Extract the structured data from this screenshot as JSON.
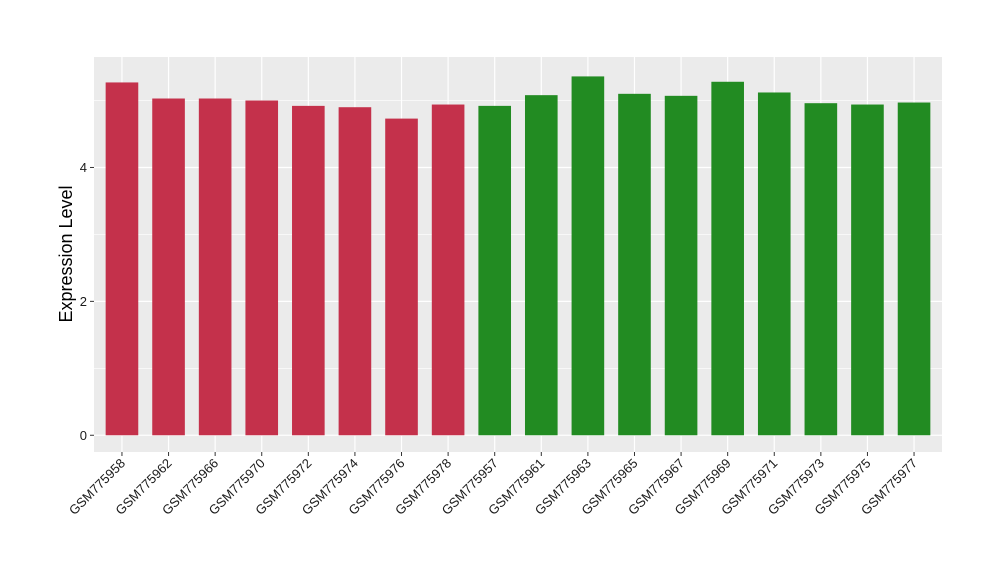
{
  "chart_data": {
    "type": "bar",
    "title": "",
    "xlabel": "",
    "ylabel": "Expression Level",
    "ylim": [
      -0.25,
      5.65
    ],
    "yticks": [
      0,
      2,
      4
    ],
    "grid": true,
    "legend": "none",
    "categories": [
      "GSM775958",
      "GSM775962",
      "GSM775966",
      "GSM775970",
      "GSM775972",
      "GSM775974",
      "GSM775976",
      "GSM775978",
      "GSM775957",
      "GSM775961",
      "GSM775963",
      "GSM775965",
      "GSM775967",
      "GSM775969",
      "GSM775971",
      "GSM775973",
      "GSM775975",
      "GSM775977"
    ],
    "values": [
      5.27,
      5.03,
      5.03,
      5.0,
      4.92,
      4.9,
      4.73,
      4.94,
      4.92,
      5.08,
      5.36,
      5.1,
      5.07,
      5.28,
      5.12,
      4.96,
      4.94,
      4.97
    ],
    "groups": [
      "a",
      "a",
      "a",
      "a",
      "a",
      "a",
      "a",
      "a",
      "b",
      "b",
      "b",
      "b",
      "b",
      "b",
      "b",
      "b",
      "b",
      "b"
    ],
    "group_colors": {
      "a": "#c4314b",
      "b": "#228b22"
    },
    "panel_background": "#ebebeb",
    "grid_color": "#ffffff"
  }
}
